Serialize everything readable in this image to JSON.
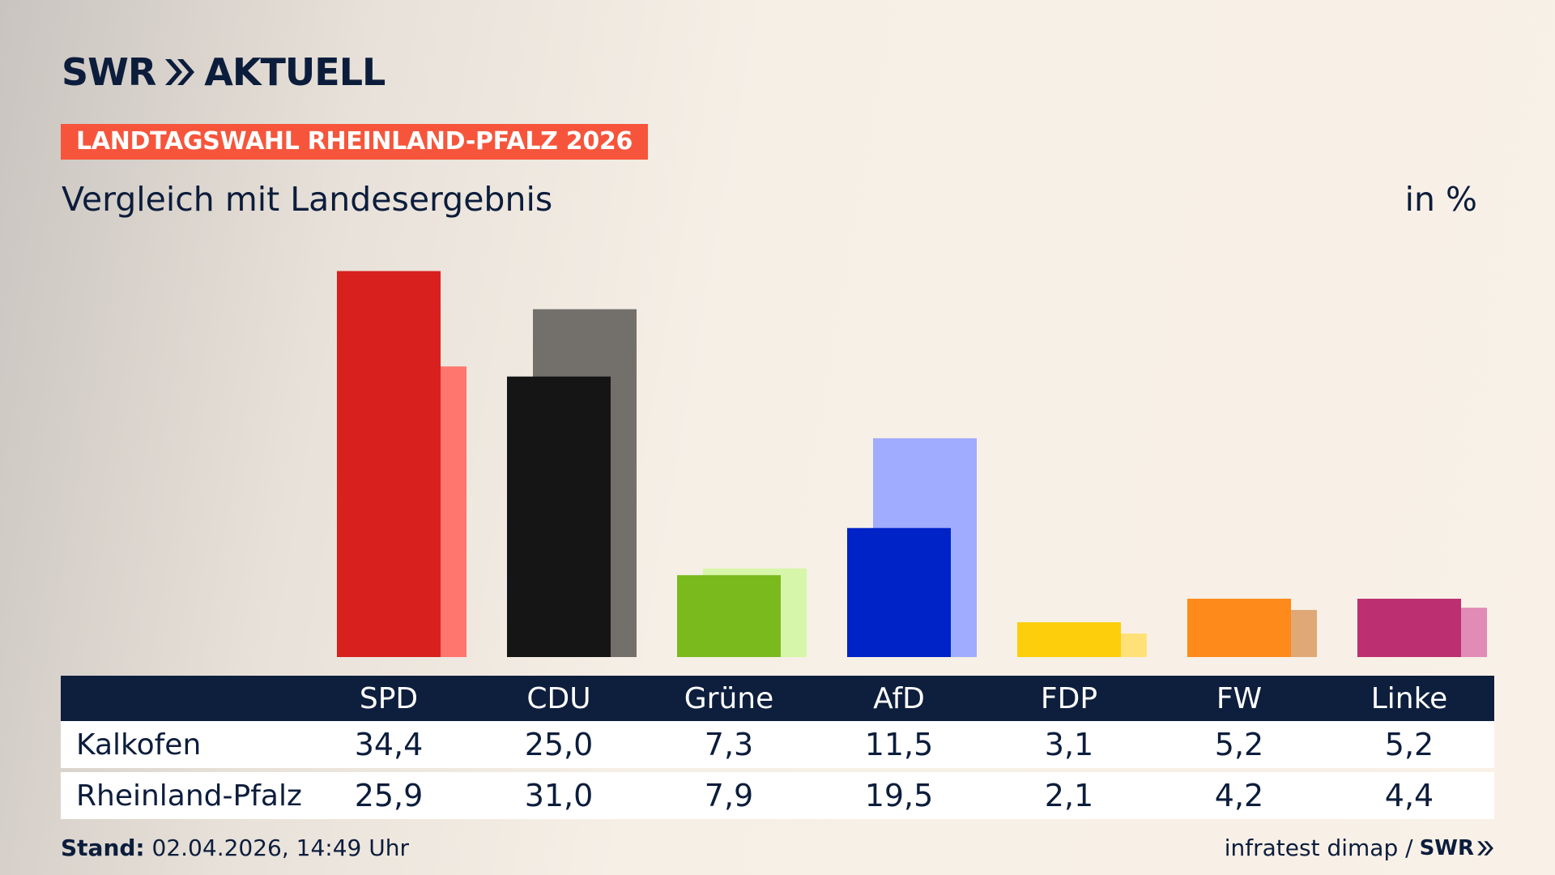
{
  "header": {
    "logo_text_1": "SWR",
    "logo_text_2": "AKTUELL",
    "tag": "LANDTAGSWAHL RHEINLAND-PFALZ 2026",
    "subtitle": "Vergleich mit Landesergebnis",
    "unit": "in %"
  },
  "colors": {
    "navy": "#0e1e3d",
    "tag_red": "#f6553c"
  },
  "chart_data": {
    "type": "bar",
    "categories": [
      "SPD",
      "CDU",
      "Grüne",
      "AfD",
      "FDP",
      "FW",
      "Linke"
    ],
    "series": [
      {
        "name": "Kalkofen",
        "values": [
          34.4,
          25.0,
          7.3,
          11.5,
          3.1,
          5.2,
          5.2
        ],
        "colors": [
          "#d8201f",
          "#151515",
          "#7aba1d",
          "#0023c8",
          "#fdce0c",
          "#fd8a1a",
          "#bc2f70"
        ]
      },
      {
        "name": "Rheinland-Pfalz",
        "values": [
          25.9,
          31.0,
          7.9,
          19.5,
          2.1,
          4.2,
          4.4
        ],
        "colors": [
          "#ff766f",
          "#73706c",
          "#d6f6a9",
          "#a0acff",
          "#ffe177",
          "#dfa876",
          "#e08cb7"
        ]
      }
    ]
  },
  "table": {
    "rows": [
      {
        "label": "Kalkofen",
        "values": [
          "34,4",
          "25,0",
          "7,3",
          "11,5",
          "3,1",
          "5,2",
          "5,2"
        ]
      },
      {
        "label": "Rheinland-Pfalz",
        "values": [
          "25,9",
          "31,0",
          "7,9",
          "19,5",
          "2,1",
          "4,2",
          "4,4"
        ]
      }
    ]
  },
  "footer": {
    "stand_label": "Stand:",
    "stand_value": "02.04.2026, 14:49 Uhr",
    "source": "infratest dimap /",
    "source_logo": "SWR"
  }
}
